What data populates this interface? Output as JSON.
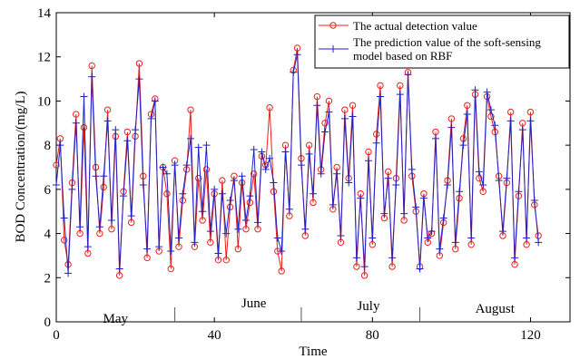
{
  "chart_data": {
    "type": "line",
    "xlabel": "Time",
    "ylabel": "BOD  Concentration/(mg/L)",
    "xlim": [
      0,
      130
    ],
    "ylim": [
      0,
      14
    ],
    "xticks": [
      0,
      40,
      80,
      120
    ],
    "yticks": [
      0,
      2,
      4,
      6,
      8,
      10,
      12,
      14
    ],
    "grid": false,
    "legend_position": "top-right",
    "months": [
      {
        "label": "May",
        "center": 15
      },
      {
        "label": "June",
        "center": 50
      },
      {
        "label": "July",
        "center": 79
      },
      {
        "label": "August",
        "center": 111
      }
    ],
    "month_separators": [
      30,
      62,
      92
    ],
    "series": [
      {
        "name": "The actual detection value",
        "color": "#e8211c",
        "marker": "circle",
        "x": [
          0,
          1,
          2,
          3,
          4,
          5,
          6,
          7,
          8,
          9,
          10,
          11,
          12,
          13,
          14,
          15,
          16,
          17,
          18,
          19,
          20,
          21,
          22,
          23,
          24,
          25,
          26,
          27,
          28,
          29,
          30,
          31,
          32,
          33,
          34,
          35,
          36,
          37,
          38,
          39,
          40,
          41,
          42,
          43,
          44,
          45,
          46,
          47,
          48,
          49,
          50,
          51,
          52,
          53,
          54,
          55,
          56,
          57,
          58,
          59,
          60,
          61,
          62,
          63,
          64,
          65,
          66,
          67,
          68,
          69,
          70,
          71,
          72,
          73,
          74,
          75,
          76,
          77,
          78,
          79,
          80,
          81,
          82,
          83,
          84,
          85,
          86,
          87,
          88,
          89,
          90,
          91,
          92,
          93,
          94,
          95,
          96,
          97,
          98,
          99,
          100,
          101,
          102,
          103,
          104,
          105,
          106,
          107,
          108,
          109,
          110,
          111,
          112,
          113,
          114,
          115,
          116,
          117,
          118,
          119,
          120,
          121,
          122
        ],
        "values": [
          7.1,
          8.3,
          3.7,
          2.6,
          6.3,
          9.4,
          4.0,
          8.8,
          3.1,
          11.6,
          7.0,
          4.0,
          6.1,
          9.6,
          4.2,
          8.4,
          2.1,
          5.9,
          8.6,
          4.5,
          8.4,
          11.7,
          6.6,
          2.9,
          9.4,
          10.1,
          3.2,
          7.0,
          5.8,
          2.4,
          7.3,
          3.4,
          5.5,
          6.9,
          9.6,
          3.4,
          6.5,
          4.6,
          6.9,
          3.6,
          5.8,
          2.8,
          6.4,
          2.8,
          5.2,
          6.6,
          3.3,
          6.3,
          4.2,
          5.4,
          6.7,
          4.2,
          7.5,
          7.1,
          9.7,
          5.9,
          3.2,
          2.3,
          8.0,
          4.8,
          11.4,
          12.4,
          7.4,
          3.9,
          8.0,
          5.4,
          10.2,
          6.9,
          9.0,
          10.0,
          5.1,
          7.0,
          3.6,
          9.6,
          6.5,
          9.8,
          2.5,
          5.8,
          2.1,
          7.7,
          3.5,
          8.5,
          10.7,
          4.7,
          6.8,
          2.5,
          6.5,
          10.7,
          4.6,
          11.3,
          6.6,
          5.0,
          2.5,
          5.8,
          3.6,
          4.0,
          8.6,
          3.0,
          4.5,
          6.4,
          9.2,
          3.3,
          5.6,
          8.3,
          9.8,
          3.5,
          10.3,
          6.5,
          5.9,
          10.2,
          9.3,
          8.6,
          6.6,
          3.9,
          6.3,
          9.5,
          2.6,
          5.7,
          9.0,
          3.5,
          9.5,
          5.3,
          3.9
        ]
      },
      {
        "name": "The prediction value of the soft-sensing model based on RBF",
        "color": "#1f22c8",
        "marker": "plus",
        "x": [
          0,
          1,
          2,
          3,
          4,
          5,
          6,
          7,
          8,
          9,
          10,
          11,
          12,
          13,
          14,
          15,
          16,
          17,
          18,
          19,
          20,
          21,
          22,
          23,
          24,
          25,
          26,
          27,
          28,
          29,
          30,
          31,
          32,
          33,
          34,
          35,
          36,
          37,
          38,
          39,
          40,
          41,
          42,
          43,
          44,
          45,
          46,
          47,
          48,
          49,
          50,
          51,
          52,
          53,
          54,
          55,
          56,
          57,
          58,
          59,
          60,
          61,
          62,
          63,
          64,
          65,
          66,
          67,
          68,
          69,
          70,
          71,
          72,
          73,
          74,
          75,
          76,
          77,
          78,
          79,
          80,
          81,
          82,
          83,
          84,
          85,
          86,
          87,
          88,
          89,
          90,
          91,
          92,
          93,
          94,
          95,
          96,
          97,
          98,
          99,
          100,
          101,
          102,
          103,
          104,
          105,
          106,
          107,
          108,
          109,
          110,
          111,
          112,
          113,
          114,
          115,
          116,
          117,
          118,
          119,
          120,
          121,
          122
        ],
        "values": [
          6.2,
          8.0,
          4.7,
          2.2,
          6.0,
          9.0,
          4.3,
          10.2,
          3.4,
          11.1,
          6.6,
          4.3,
          6.6,
          9.1,
          4.6,
          8.7,
          2.4,
          5.7,
          8.2,
          4.8,
          8.7,
          11.0,
          6.2,
          3.3,
          9.2,
          10.0,
          3.4,
          7.0,
          6.7,
          3.2,
          7.1,
          3.8,
          5.8,
          7.1,
          8.3,
          3.6,
          7.9,
          5.0,
          8.0,
          4.1,
          6.0,
          3.1,
          5.8,
          4.0,
          5.5,
          6.4,
          4.2,
          6.6,
          4.6,
          5.7,
          7.8,
          4.5,
          7.7,
          6.9,
          7.4,
          6.3,
          3.8,
          3.2,
          7.7,
          5.1,
          11.3,
          12.1,
          7.1,
          4.2,
          7.6,
          5.8,
          9.8,
          6.7,
          8.6,
          9.5,
          5.3,
          6.7,
          3.9,
          9.2,
          6.3,
          9.3,
          2.9,
          5.6,
          2.5,
          7.3,
          3.8,
          8.1,
          10.2,
          4.9,
          6.5,
          2.9,
          6.2,
          10.3,
          4.9,
          11.2,
          6.9,
          5.2,
          2.4,
          5.6,
          3.8,
          4.1,
          8.3,
          3.3,
          4.7,
          6.2,
          8.8,
          3.6,
          5.9,
          8.0,
          9.4,
          3.8,
          10.5,
          6.8,
          6.2,
          10.4,
          9.6,
          8.9,
          6.4,
          4.1,
          6.5,
          9.1,
          2.9,
          5.9,
          8.7,
          3.8,
          9.1,
          5.5,
          3.6
        ]
      }
    ]
  }
}
